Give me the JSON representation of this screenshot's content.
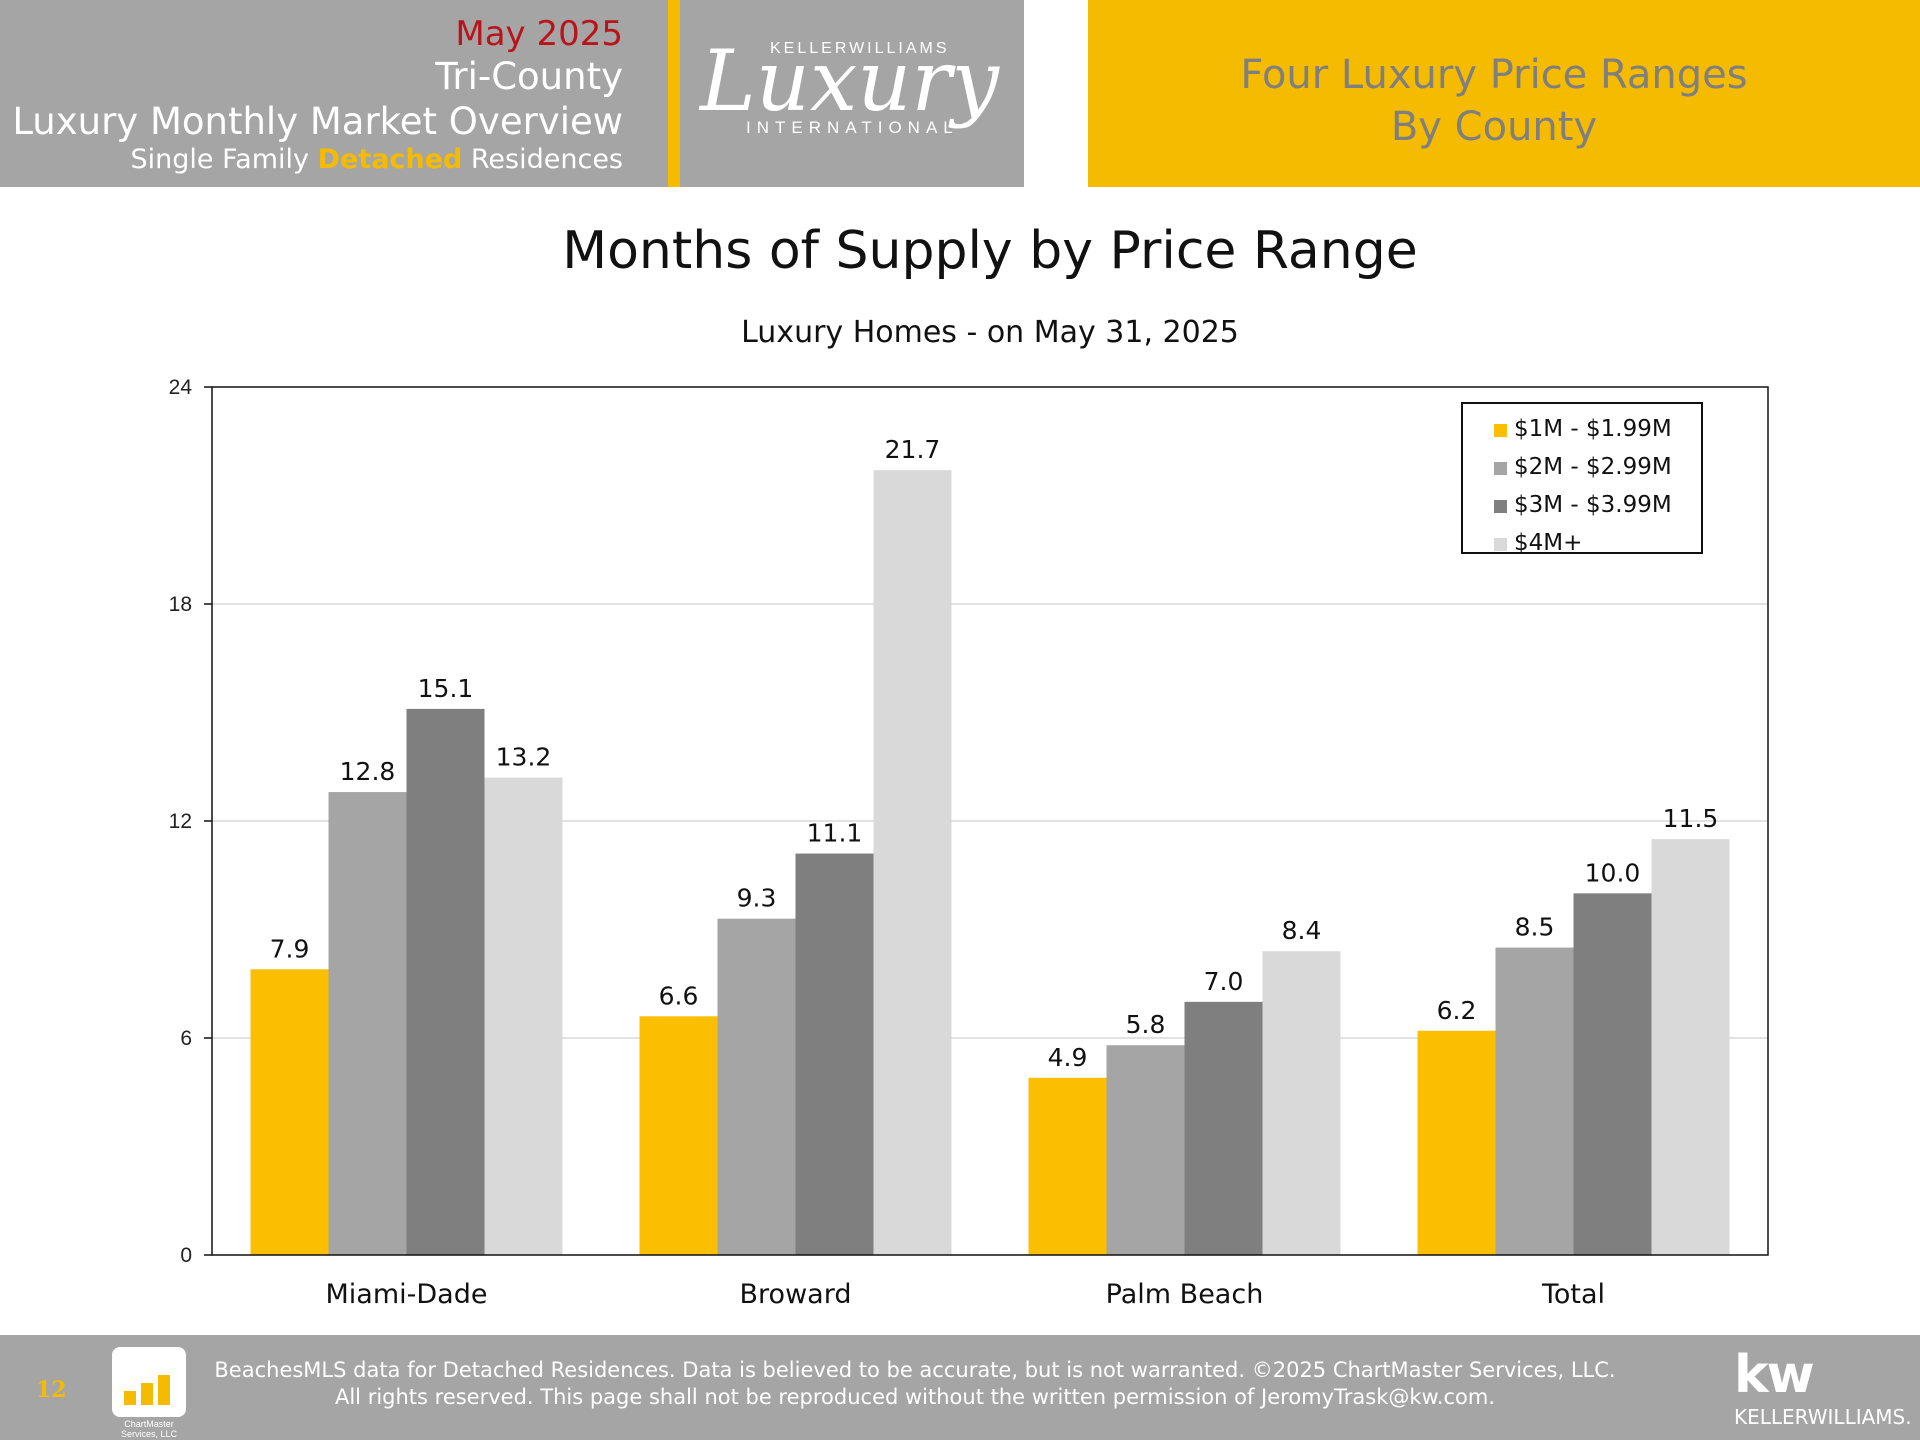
{
  "header": {
    "month": "May 2025",
    "region": "Tri-County",
    "title": "Luxury Monthly Market Overview",
    "subtitle_pre": "Single Family ",
    "subtitle_highlight": "Detached",
    "subtitle_post": " Residences",
    "logo_top": "KELLERWILLIAMS",
    "logo_script": "Luxury",
    "logo_bottom": "INTERNATIONAL",
    "banner_line1": "Four Luxury Price Ranges",
    "banner_line2": "By County"
  },
  "colors": {
    "gold": "#f5bb00",
    "gray_header": "#a5a5a5",
    "series": [
      "#fbbe00",
      "#a5a5a5",
      "#7f7f7f",
      "#d9d9d9"
    ]
  },
  "chart_data": {
    "type": "bar",
    "title": "Months of Supply by Price Range",
    "subtitle": "Luxury Homes - on May 31, 2025",
    "categories": [
      "Miami-Dade",
      "Broward",
      "Palm Beach",
      "Total"
    ],
    "series": [
      {
        "name": "$1M - $1.99M",
        "values": [
          7.9,
          6.6,
          4.9,
          6.2
        ]
      },
      {
        "name": "$2M - $2.99M",
        "values": [
          12.8,
          9.3,
          5.8,
          8.5
        ]
      },
      {
        "name": "$3M - $3.99M",
        "values": [
          15.1,
          11.1,
          7.0,
          10.0
        ]
      },
      {
        "name": "$4M+",
        "values": [
          13.2,
          21.7,
          8.4,
          11.5
        ]
      }
    ],
    "data_labels": [
      [
        "7.9",
        "6.6",
        "4.9",
        "6.2"
      ],
      [
        "12.8",
        "9.3",
        "5.8",
        "8.5"
      ],
      [
        "15.1",
        "11.1",
        "7.0",
        "10.0"
      ],
      [
        "13.2",
        "21.7",
        "8.4",
        "11.5"
      ]
    ],
    "ylim": [
      0,
      24
    ],
    "yticks": [
      0,
      6,
      12,
      18,
      24
    ],
    "ytick_labels": [
      "0",
      "6",
      "12",
      "18",
      "24"
    ],
    "xlabel": "",
    "ylabel": "",
    "grid": true,
    "legend_position": "top-right"
  },
  "footer": {
    "page_number": "12",
    "logo_name": "ChartMaster Services, LLC",
    "line1": "BeachesMLS data for Detached Residences.  Data is believed to be accurate, but is not warranted.   ©2025  ChartMaster Services, LLC.",
    "line2": "All rights reserved. This page shall not be reproduced without the written permission of JeromyTrask@kw.com.",
    "kw_logo": "kw",
    "kw_name": "KELLERWILLIAMS."
  }
}
